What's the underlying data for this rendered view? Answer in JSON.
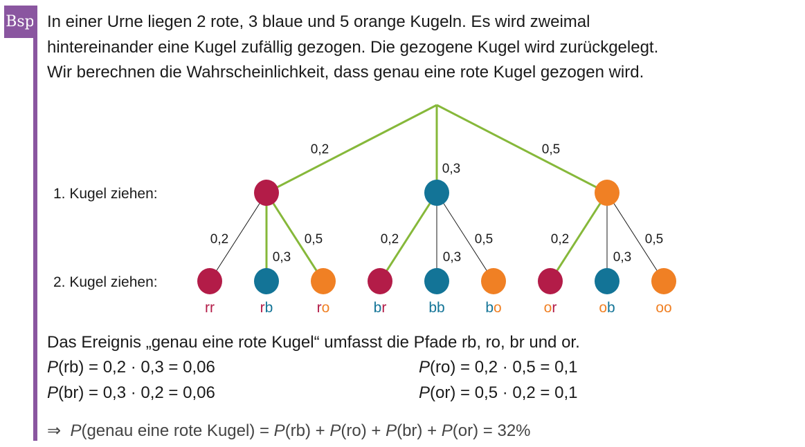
{
  "badge": "Bsp",
  "intro": [
    "In einer Urne liegen 2 rote, 3 blaue und 5 orange Kugeln. Es wird zweimal",
    "hintereinander eine Kugel zufällig gezogen. Die gezogene Kugel wird zurückgelegt.",
    "Wir berechnen die Wahrscheinlichkeit, dass genau eine rote Kugel gezogen wird."
  ],
  "colors": {
    "r": "#b31c48",
    "b": "#137497",
    "o": "#f08024",
    "green": "#86b83a",
    "purple": "#8a56a0"
  },
  "tree": {
    "level1_label": "1. Kugel ziehen:",
    "level2_label": "2. Kugel ziehen:",
    "first": [
      {
        "c": "r",
        "p": "0,2"
      },
      {
        "c": "b",
        "p": "0,3"
      },
      {
        "c": "o",
        "p": "0,5"
      }
    ],
    "second_probs": [
      "0,2",
      "0,3",
      "0,5"
    ],
    "highlighted": [
      "rb",
      "ro",
      "br",
      "or"
    ]
  },
  "event": "Das Ereignis „genau eine rote Kugel“ umfasst die Pfade rb, ro, br und or.",
  "calc": {
    "rb": "(rb) = 0,2 · 0,3 = 0,06",
    "ro": "(ro) = 0,2 · 0,5 = 0,1",
    "br": "(br) = 0,3 · 0,2 = 0,06",
    "or": "(or) = 0,5 · 0,2 = 0,1",
    "P": "P"
  },
  "result": {
    "arrow": "⇒",
    "text": "(genau eine rote Kugel) = ",
    "sum": [
      "(rb) + ",
      "(ro) + ",
      "(br) + ",
      "(or) = 32%"
    ]
  }
}
